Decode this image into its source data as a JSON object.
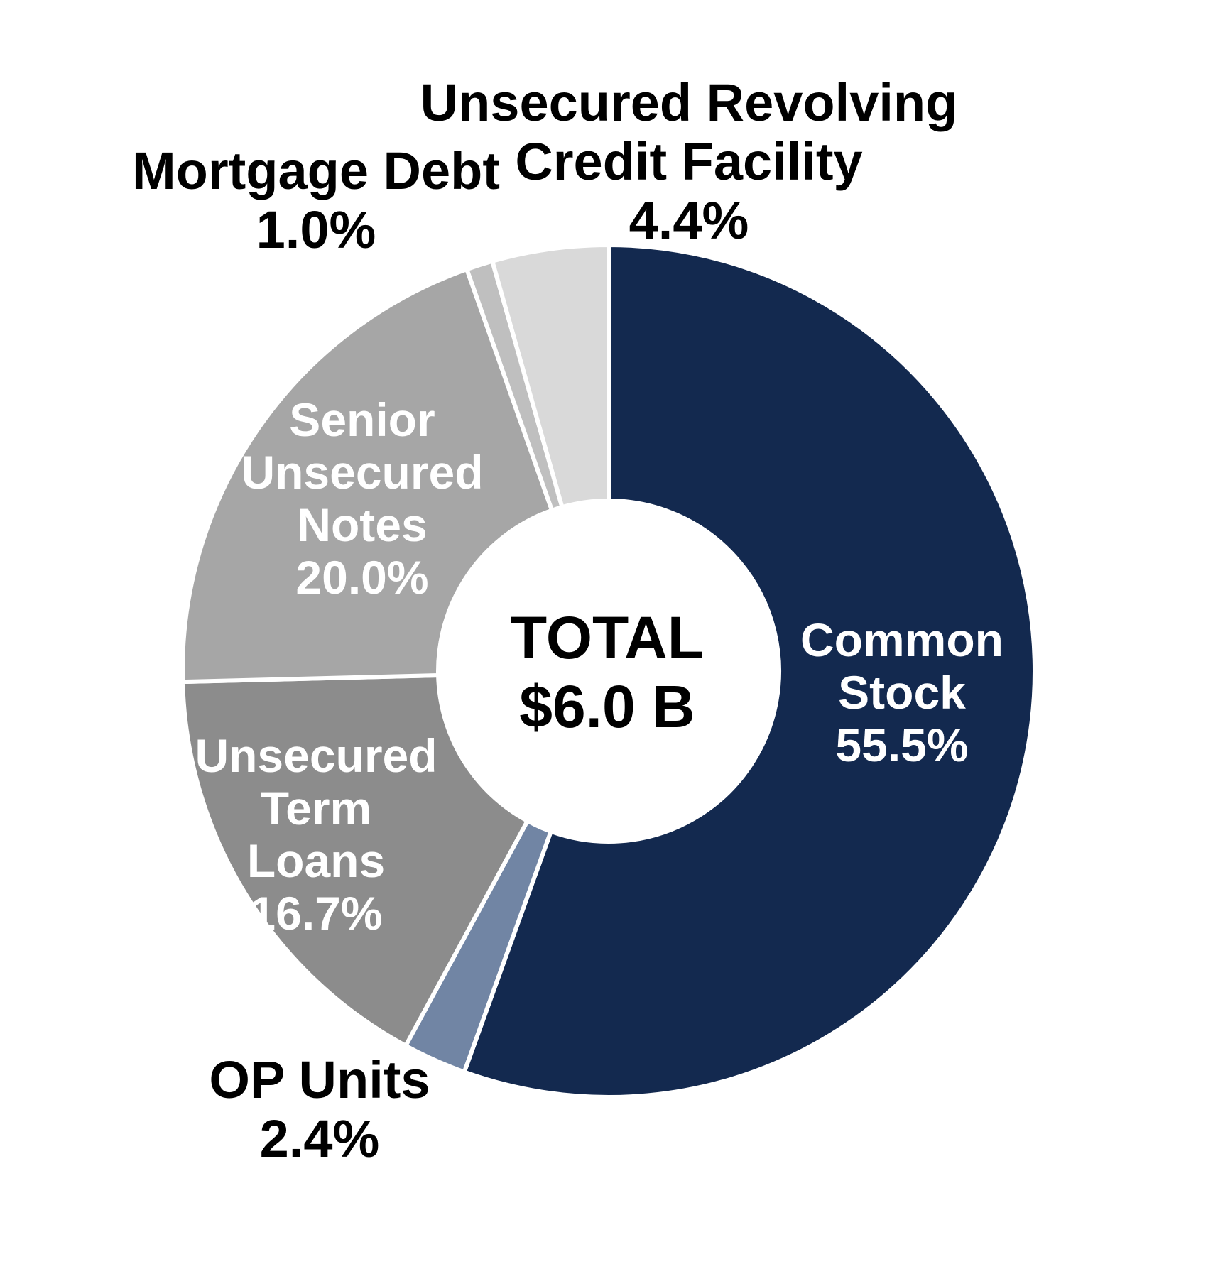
{
  "chart_data": {
    "type": "pie",
    "subtype": "donut",
    "direction": "clockwise",
    "start_angle_deg": 0,
    "hole_ratio": 0.4,
    "separator_color": "#FFFFFF",
    "background_color": "#FFFFFF",
    "center_label": {
      "title": "TOTAL",
      "value": "$6.0 B"
    },
    "categories": [
      "Common Stock",
      "OP Units",
      "Unsecured Term Loans",
      "Senior Unsecured Notes",
      "Mortgage Debt",
      "Unsecured Revolving Credit Facility"
    ],
    "series": [
      {
        "label": "Common Stock",
        "value": 55.5,
        "pct_label": "55.5%",
        "color": "#13294F",
        "label_color": "#FFFFFF",
        "label_placement": "inside"
      },
      {
        "label": "OP Units",
        "value": 2.4,
        "pct_label": "2.4%",
        "color": "#7185A4",
        "label_color": "#000000",
        "label_placement": "outside"
      },
      {
        "label": "Unsecured Term Loans",
        "value": 16.7,
        "pct_label": "16.7%",
        "color": "#8C8C8C",
        "label_color": "#FFFFFF",
        "label_placement": "inside"
      },
      {
        "label": "Senior Unsecured Notes",
        "value": 20.0,
        "pct_label": "20.0%",
        "color": "#A6A6A6",
        "label_color": "#FFFFFF",
        "label_placement": "inside"
      },
      {
        "label": "Mortgage Debt",
        "value": 1.0,
        "pct_label": "1.0%",
        "color": "#BFBFBF",
        "label_color": "#000000",
        "label_placement": "outside"
      },
      {
        "label": "Unsecured Revolving Credit Facility",
        "value": 4.4,
        "pct_label": "4.4%",
        "color": "#D9D9D9",
        "label_color": "#000000",
        "label_placement": "outside"
      }
    ]
  }
}
